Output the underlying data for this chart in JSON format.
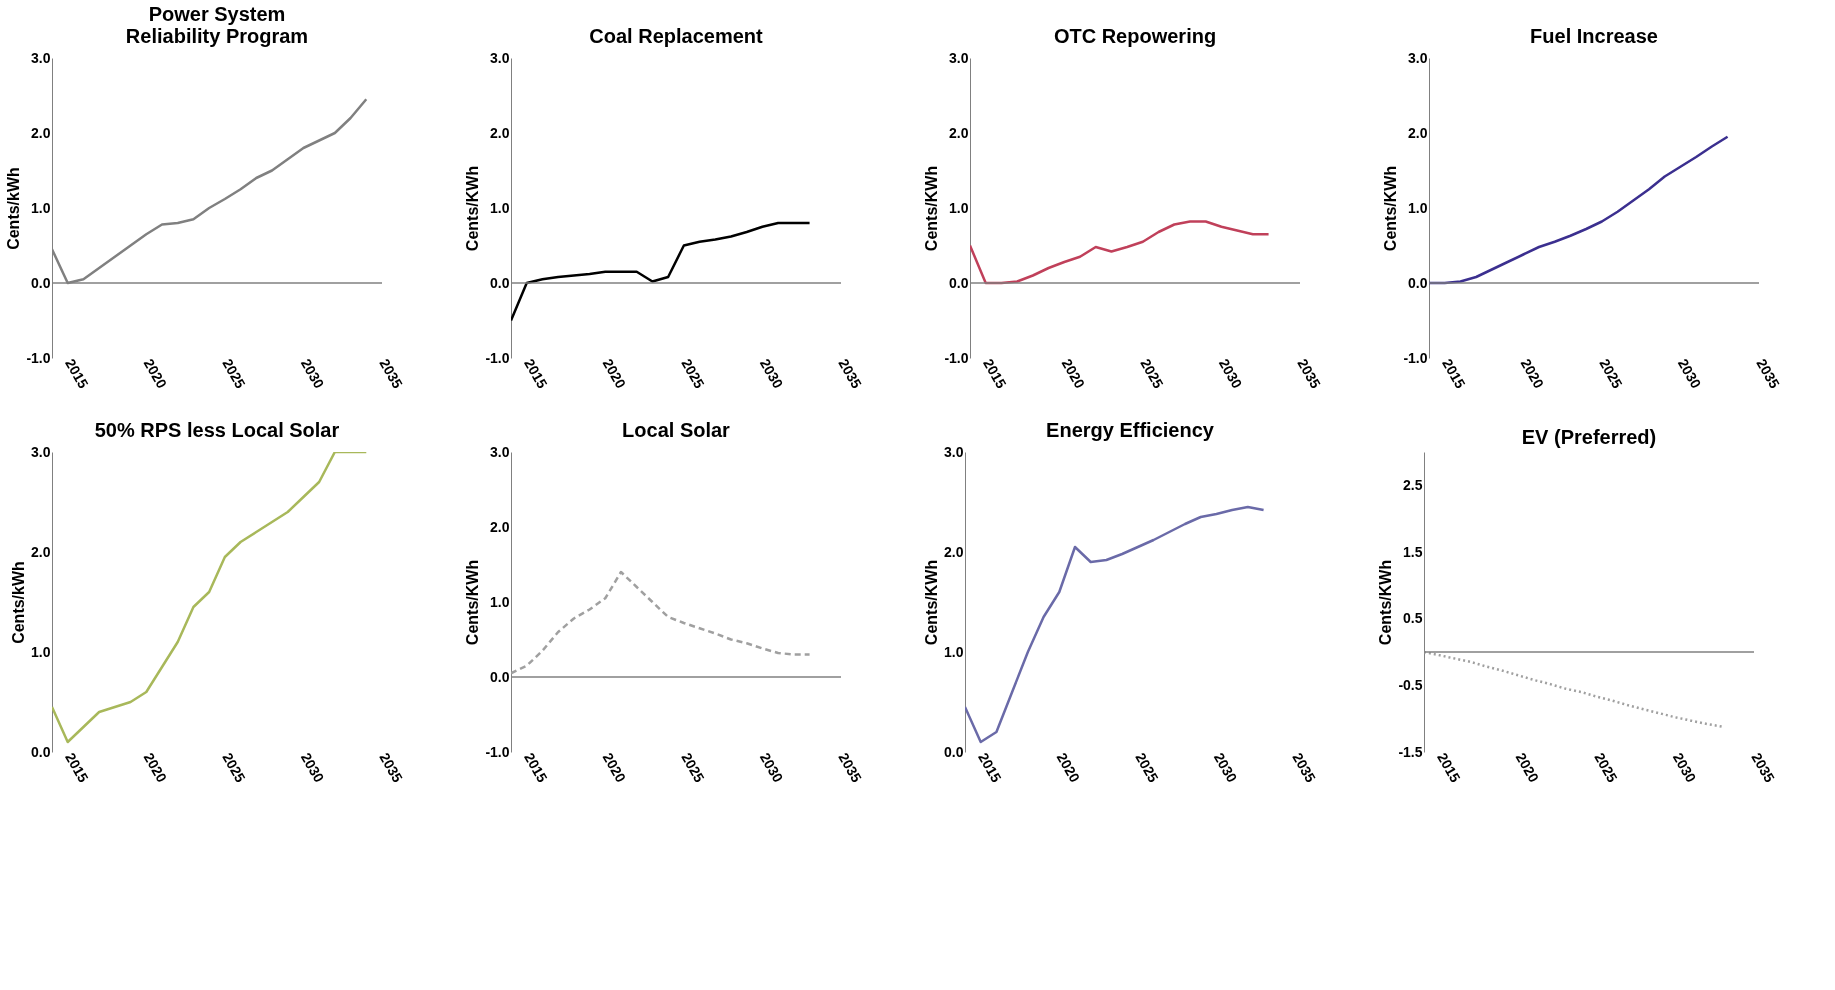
{
  "chart_data": [
    {
      "type": "line",
      "title": "Power System\nReliability Program",
      "ylabel": "Cents/kWh",
      "x": [
        2014,
        2015,
        2016,
        2017,
        2018,
        2019,
        2020,
        2021,
        2022,
        2023,
        2024,
        2025,
        2026,
        2027,
        2028,
        2029,
        2030,
        2031,
        2032,
        2033,
        2034
      ],
      "series": [
        {
          "color": "#808080",
          "values": [
            0.45,
            0.0,
            0.05,
            0.2,
            0.35,
            0.5,
            0.65,
            0.78,
            0.8,
            0.85,
            1.0,
            1.12,
            1.25,
            1.4,
            1.5,
            1.65,
            1.8,
            1.9,
            2.0,
            2.2,
            2.45
          ]
        }
      ],
      "xlim": [
        2014,
        2035
      ],
      "xticks": [
        2015,
        2020,
        2025,
        2030,
        2035
      ],
      "ylim": [
        -1,
        3
      ],
      "yticks": [
        {
          "value": -1,
          "label": "-1.0"
        },
        {
          "value": 0,
          "label": "0.0"
        },
        {
          "value": 1,
          "label": "1.0"
        },
        {
          "value": 2,
          "label": "2.0"
        },
        {
          "value": 3,
          "label": "3.0"
        }
      ],
      "ref_lines": [
        {
          "axis": "y",
          "value": 0,
          "color": "#808080"
        }
      ],
      "line_style": "solid",
      "grid": false
    },
    {
      "type": "line",
      "title": "Coal Replacement",
      "ylabel": "Cents/KWh",
      "x": [
        2014,
        2015,
        2016,
        2017,
        2018,
        2019,
        2020,
        2021,
        2022,
        2023,
        2024,
        2025,
        2026,
        2027,
        2028,
        2029,
        2030,
        2031,
        2032,
        2033
      ],
      "series": [
        {
          "color": "#000000",
          "values": [
            -0.5,
            0.0,
            0.05,
            0.08,
            0.1,
            0.12,
            0.15,
            0.15,
            0.15,
            0.02,
            0.08,
            0.5,
            0.55,
            0.58,
            0.62,
            0.68,
            0.75,
            0.8,
            0.8,
            0.8
          ]
        }
      ],
      "xlim": [
        2014,
        2035
      ],
      "xticks": [
        2015,
        2020,
        2025,
        2030,
        2035
      ],
      "ylim": [
        -1,
        3
      ],
      "yticks": [
        {
          "value": -1,
          "label": "-1.0"
        },
        {
          "value": 0,
          "label": "0.0"
        },
        {
          "value": 1,
          "label": "1.0"
        },
        {
          "value": 2,
          "label": "2.0"
        },
        {
          "value": 3,
          "label": "3.0"
        }
      ],
      "ref_lines": [
        {
          "axis": "y",
          "value": 0,
          "color": "#808080"
        }
      ],
      "line_style": "solid",
      "grid": false
    },
    {
      "type": "line",
      "title": "OTC Repowering",
      "ylabel": "Cents/KWh",
      "x": [
        2014,
        2015,
        2016,
        2017,
        2018,
        2019,
        2020,
        2021,
        2022,
        2023,
        2024,
        2025,
        2026,
        2027,
        2028,
        2029,
        2030,
        2031,
        2032,
        2033
      ],
      "series": [
        {
          "color": "#c0405a",
          "values": [
            0.5,
            0.0,
            0.0,
            0.02,
            0.1,
            0.2,
            0.28,
            0.35,
            0.48,
            0.42,
            0.48,
            0.55,
            0.68,
            0.78,
            0.82,
            0.82,
            0.75,
            0.7,
            0.65,
            0.65
          ]
        }
      ],
      "xlim": [
        2014,
        2035
      ],
      "xticks": [
        2015,
        2020,
        2025,
        2030,
        2035
      ],
      "ylim": [
        -1,
        3
      ],
      "yticks": [
        {
          "value": -1,
          "label": "-1.0"
        },
        {
          "value": 0,
          "label": "0.0"
        },
        {
          "value": 1,
          "label": "1.0"
        },
        {
          "value": 2,
          "label": "2.0"
        },
        {
          "value": 3,
          "label": "3.0"
        }
      ],
      "ref_lines": [
        {
          "axis": "y",
          "value": 0,
          "color": "#808080"
        }
      ],
      "line_style": "solid",
      "grid": false
    },
    {
      "type": "line",
      "title": "Fuel Increase",
      "ylabel": "Cents/KWh",
      "x": [
        2014,
        2015,
        2016,
        2017,
        2018,
        2019,
        2020,
        2021,
        2022,
        2023,
        2024,
        2025,
        2026,
        2027,
        2028,
        2029,
        2030,
        2031,
        2032,
        2033
      ],
      "series": [
        {
          "color": "#3b2f8f",
          "values": [
            0.0,
            0.0,
            0.02,
            0.08,
            0.18,
            0.28,
            0.38,
            0.48,
            0.55,
            0.63,
            0.72,
            0.82,
            0.95,
            1.1,
            1.25,
            1.42,
            1.55,
            1.68,
            1.82,
            1.95
          ]
        }
      ],
      "xlim": [
        2014,
        2035
      ],
      "xticks": [
        2015,
        2020,
        2025,
        2030,
        2035
      ],
      "ylim": [
        -1,
        3
      ],
      "yticks": [
        {
          "value": -1,
          "label": "-1.0"
        },
        {
          "value": 0,
          "label": "0.0"
        },
        {
          "value": 1,
          "label": "1.0"
        },
        {
          "value": 2,
          "label": "2.0"
        },
        {
          "value": 3,
          "label": "3.0"
        }
      ],
      "ref_lines": [
        {
          "axis": "y",
          "value": 0,
          "color": "#808080"
        }
      ],
      "line_style": "solid",
      "grid": false
    },
    {
      "type": "line",
      "title": "50% RPS less Local Solar",
      "ylabel": "Cents/kWh",
      "x": [
        2014,
        2015,
        2016,
        2017,
        2018,
        2019,
        2020,
        2021,
        2022,
        2023,
        2024,
        2025,
        2026,
        2027,
        2028,
        2029,
        2030,
        2031,
        2032,
        2033,
        2034
      ],
      "series": [
        {
          "color": "#a8b85a",
          "values": [
            0.45,
            0.1,
            0.25,
            0.4,
            0.45,
            0.5,
            0.6,
            0.85,
            1.1,
            1.45,
            1.6,
            1.95,
            2.1,
            2.2,
            2.3,
            2.4,
            2.55,
            2.7,
            3.0,
            3.0,
            3.0
          ]
        }
      ],
      "xlim": [
        2014,
        2035
      ],
      "xticks": [
        2015,
        2020,
        2025,
        2030,
        2035
      ],
      "ylim": [
        0,
        3
      ],
      "yticks": [
        {
          "value": 0,
          "label": "0.0"
        },
        {
          "value": 1,
          "label": "1.0"
        },
        {
          "value": 2,
          "label": "2.0"
        },
        {
          "value": 3,
          "label": "3.0"
        }
      ],
      "line_style": "solid",
      "grid": false
    },
    {
      "type": "line",
      "title": "Local Solar",
      "ylabel": "Cents/KWh",
      "x": [
        2014,
        2015,
        2016,
        2017,
        2018,
        2019,
        2020,
        2021,
        2022,
        2023,
        2024,
        2025,
        2026,
        2027,
        2028,
        2029,
        2030,
        2031,
        2032,
        2033
      ],
      "series": [
        {
          "color": "#a0a0a0",
          "values": [
            0.05,
            0.15,
            0.35,
            0.6,
            0.78,
            0.9,
            1.05,
            1.4,
            1.2,
            1.0,
            0.8,
            0.72,
            0.65,
            0.58,
            0.5,
            0.45,
            0.38,
            0.32,
            0.3,
            0.3
          ]
        }
      ],
      "xlim": [
        2014,
        2035
      ],
      "xticks": [
        2015,
        2020,
        2025,
        2030,
        2035
      ],
      "ylim": [
        -1,
        3
      ],
      "yticks": [
        {
          "value": -1,
          "label": "-1.0"
        },
        {
          "value": 0,
          "label": "0.0"
        },
        {
          "value": 1,
          "label": "1.0"
        },
        {
          "value": 2,
          "label": "2.0"
        },
        {
          "value": 3,
          "label": "3.0"
        }
      ],
      "ref_lines": [
        {
          "axis": "y",
          "value": 0,
          "color": "#808080"
        }
      ],
      "line_style": "dashed",
      "grid": false
    },
    {
      "type": "line",
      "title": "Energy Efficiency",
      "ylabel": "Cents/KWh",
      "x": [
        2014,
        2015,
        2016,
        2017,
        2018,
        2019,
        2020,
        2021,
        2022,
        2023,
        2024,
        2025,
        2026,
        2027,
        2028,
        2029,
        2030,
        2031,
        2032,
        2033
      ],
      "series": [
        {
          "color": "#6a6aa8",
          "values": [
            0.45,
            0.1,
            0.2,
            0.6,
            1.0,
            1.35,
            1.6,
            2.05,
            1.9,
            1.92,
            1.98,
            2.05,
            2.12,
            2.2,
            2.28,
            2.35,
            2.38,
            2.42,
            2.45,
            2.42
          ]
        }
      ],
      "xlim": [
        2014,
        2035
      ],
      "xticks": [
        2015,
        2020,
        2025,
        2030,
        2035
      ],
      "ylim": [
        0,
        3
      ],
      "yticks": [
        {
          "value": 0,
          "label": "0.0"
        },
        {
          "value": 1,
          "label": "1.0"
        },
        {
          "value": 2,
          "label": "2.0"
        },
        {
          "value": 3,
          "label": "3.0"
        }
      ],
      "line_style": "solid",
      "grid": false
    },
    {
      "type": "line",
      "title": "EV (Preferred)",
      "ylabel": "Cents/KWh",
      "x": [
        2014,
        2015,
        2016,
        2017,
        2018,
        2019,
        2020,
        2021,
        2022,
        2023,
        2024,
        2025,
        2026,
        2027,
        2028,
        2029,
        2030,
        2031,
        2032,
        2033
      ],
      "series": [
        {
          "color": "#a0a0a0",
          "values": [
            0.0,
            -0.05,
            -0.1,
            -0.15,
            -0.22,
            -0.28,
            -0.35,
            -0.42,
            -0.48,
            -0.55,
            -0.6,
            -0.67,
            -0.73,
            -0.8,
            -0.86,
            -0.92,
            -0.98,
            -1.03,
            -1.08,
            -1.12
          ]
        }
      ],
      "xlim": [
        2014,
        2035
      ],
      "xticks": [
        2015,
        2020,
        2025,
        2030,
        2035
      ],
      "ylim": [
        -1.5,
        3
      ],
      "yticks": [
        {
          "value": -1.5,
          "label": "-1.5"
        },
        {
          "value": -0.5,
          "label": "-0.5"
        },
        {
          "value": 0.5,
          "label": "0.5"
        },
        {
          "value": 1.5,
          "label": "1.5"
        },
        {
          "value": 2.5,
          "label": "2.5"
        }
      ],
      "ref_lines": [
        {
          "axis": "y",
          "value": 0,
          "color": "#808080"
        }
      ],
      "line_style": "dotted",
      "grid": false
    }
  ]
}
